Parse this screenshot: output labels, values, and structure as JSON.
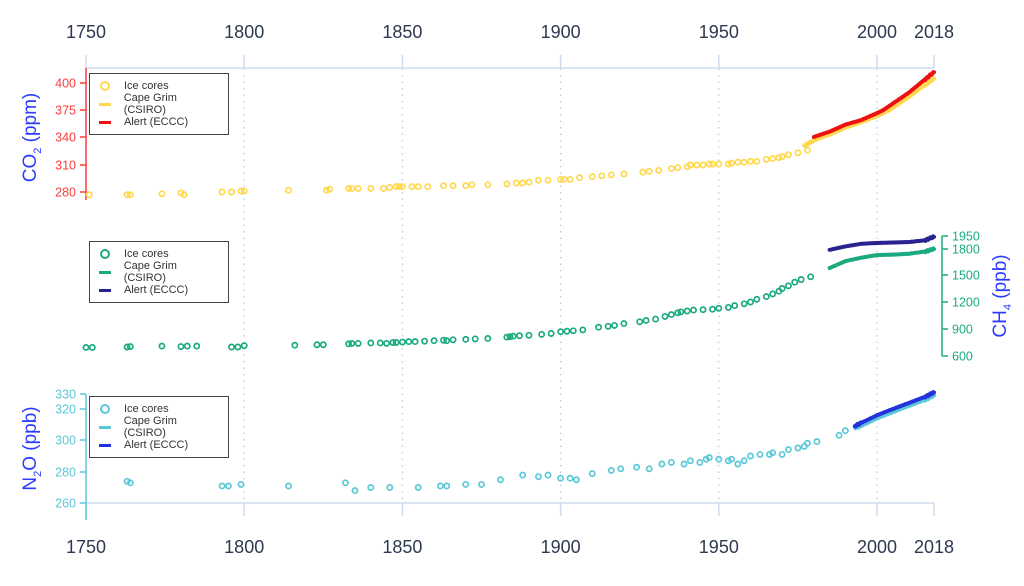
{
  "chart_data": {
    "type": "scatter",
    "title": "",
    "x_axis": {
      "label": "",
      "range": [
        1750,
        2018
      ],
      "ticks": [
        1750,
        1800,
        1850,
        1900,
        1950,
        2000,
        2018
      ],
      "tick_labels": [
        "1750",
        "1800",
        "1850",
        "1900",
        "1950",
        "2000",
        "2018"
      ],
      "position": "top and bottom",
      "grid": "dotted vertical at 1800, 1850, 1900, 1950, 2000"
    },
    "panels": [
      {
        "id": "co2",
        "ylabel": "CO2 (ppm)",
        "ylabel_main": "CO",
        "ylabel_sub": "2",
        "ylabel_unit": "(ppm)",
        "axis_side": "left",
        "axis_color": "#ff3b3b",
        "label_color": "#2b3bff",
        "ticks": [
          280,
          310,
          340,
          375,
          400
        ],
        "tick_labels": [
          "280",
          "310",
          "340",
          "375",
          "400"
        ],
        "legend": [
          {
            "label": "Ice cores",
            "symbol": "circle",
            "color": "#ffd84d"
          },
          {
            "label": "Cape Grim (CSIRO)",
            "symbol": "line",
            "color": "#ffd84d"
          },
          {
            "label": "Alert (ECCC)",
            "symbol": "line",
            "color": "#ee1111"
          }
        ],
        "series": [
          {
            "name": "Ice cores",
            "color": "#ffd84d",
            "type": "scatter",
            "x": [
              1751,
              1763,
              1764,
              1774,
              1780,
              1781,
              1793,
              1796,
              1799,
              1800,
              1814,
              1826,
              1827,
              1833,
              1834,
              1836,
              1840,
              1844,
              1846,
              1848,
              1849,
              1850,
              1853,
              1855,
              1858,
              1863,
              1866,
              1870,
              1872,
              1877,
              1883,
              1886,
              1888,
              1890,
              1893,
              1896,
              1900,
              1901,
              1903,
              1906,
              1910,
              1913,
              1916,
              1920,
              1926,
              1928,
              1931,
              1935,
              1937,
              1940,
              1941,
              1943,
              1945,
              1947,
              1948,
              1950,
              1953,
              1954,
              1956,
              1958,
              1960,
              1962,
              1965,
              1967,
              1969,
              1970,
              1972,
              1975,
              1978
            ],
            "y": [
              277,
              277,
              277,
              278,
              279,
              277,
              280,
              280,
              281,
              281,
              282,
              282,
              283,
              284,
              284,
              284,
              284,
              284,
              285,
              286,
              286,
              286,
              286,
              286,
              286,
              287,
              287,
              287,
              288,
              288,
              289,
              290,
              290,
              291,
              293,
              293,
              294,
              294,
              294,
              296,
              297,
              298,
              299,
              300,
              302,
              303,
              304,
              306,
              307,
              308,
              310,
              310,
              310,
              311,
              311,
              311,
              311,
              312,
              313,
              313,
              314,
              314,
              316,
              317,
              318,
              319,
              321,
              323,
              326
            ]
          },
          {
            "name": "Cape Grim (CSIRO)",
            "color": "#ffd84d",
            "type": "line",
            "x": [
              1977,
              1980,
              1985,
              1990,
              1995,
              2000,
              2005,
              2010,
              2015,
              2018
            ],
            "y": [
              331,
              336,
              343,
              352,
              359,
              367,
              377,
              387,
              398,
              404
            ]
          },
          {
            "name": "Alert (ECCC)",
            "color": "#ee1111",
            "type": "line",
            "x": [
              1980,
              1985,
              1990,
              1995,
              2000,
              2005,
              2010,
              2015,
              2018
            ],
            "y": [
              340,
              347,
              356,
              362,
              371,
              381,
              391,
              403,
              410
            ]
          }
        ]
      },
      {
        "id": "ch4",
        "ylabel": "CH4 (ppb)",
        "ylabel_main": "CH",
        "ylabel_sub": "4",
        "ylabel_unit": "(ppb)",
        "axis_side": "right",
        "axis_color": "#1aaa80",
        "label_color": "#2b3bff",
        "ticks": [
          600,
          900,
          1200,
          1500,
          1800,
          1950
        ],
        "tick_labels": [
          "600",
          "900",
          "1200",
          "1500",
          "1800",
          "1950"
        ],
        "legend": [
          {
            "label": "Ice cores",
            "symbol": "circle",
            "color": "#1aaa80"
          },
          {
            "label": "Cape Grim (CSIRO)",
            "symbol": "line",
            "color": "#1aaa80"
          },
          {
            "label": "Alert (ECCC)",
            "symbol": "line",
            "color": "#28238f"
          }
        ],
        "series": [
          {
            "name": "Ice cores",
            "color": "#1aaa80",
            "type": "scatter",
            "x": [
              1750,
              1752,
              1763,
              1764,
              1774,
              1780,
              1782,
              1785,
              1796,
              1798,
              1800,
              1816,
              1823,
              1825,
              1833,
              1834,
              1836,
              1840,
              1843,
              1845,
              1847,
              1848,
              1850,
              1852,
              1854,
              1857,
              1860,
              1863,
              1864,
              1866,
              1870,
              1873,
              1877,
              1883,
              1884,
              1885,
              1887,
              1890,
              1894,
              1897,
              1900,
              1902,
              1904,
              1907,
              1912,
              1915,
              1917,
              1920,
              1925,
              1927,
              1930,
              1933,
              1935,
              1937,
              1938,
              1940,
              1942,
              1945,
              1948,
              1950,
              1953,
              1955,
              1958,
              1960,
              1962,
              1965,
              1967,
              1969,
              1970,
              1972,
              1974,
              1976,
              1979
            ],
            "y": [
              695,
              695,
              700,
              705,
              710,
              705,
              710,
              710,
              700,
              700,
              715,
              720,
              725,
              725,
              735,
              740,
              740,
              745,
              745,
              740,
              750,
              750,
              755,
              760,
              760,
              765,
              770,
              775,
              770,
              780,
              785,
              790,
              795,
              810,
              815,
              820,
              825,
              830,
              840,
              850,
              870,
              875,
              880,
              890,
              920,
              930,
              940,
              960,
              980,
              995,
              1010,
              1040,
              1060,
              1080,
              1090,
              1100,
              1110,
              1115,
              1120,
              1130,
              1140,
              1160,
              1180,
              1200,
              1230,
              1260,
              1290,
              1320,
              1350,
              1380,
              1420,
              1450,
              1480
            ]
          },
          {
            "name": "Cape Grim (CSIRO)",
            "color": "#1aaa80",
            "type": "line",
            "x": [
              1985,
              1990,
              1995,
              2000,
              2005,
              2010,
              2015,
              2018
            ],
            "y": [
              1580,
              1660,
              1700,
              1730,
              1735,
              1745,
              1770,
              1800
            ]
          },
          {
            "name": "Alert (ECCC)",
            "color": "#28238f",
            "type": "line",
            "x": [
              1985,
              1990,
              1995,
              2000,
              2005,
              2010,
              2015,
              2018
            ],
            "y": [
              1790,
              1830,
              1860,
              1870,
              1875,
              1880,
              1900,
              1940
            ]
          }
        ]
      },
      {
        "id": "n2o",
        "ylabel": "N2O (ppb)",
        "ylabel_main": "N",
        "ylabel_sub": "2",
        "ylabel_tail": "O",
        "ylabel_unit": "(ppb)",
        "axis_side": "left",
        "axis_color": "#5bc8d8",
        "label_color": "#2b3bff",
        "ticks": [
          260,
          280,
          300,
          320,
          330
        ],
        "tick_labels": [
          "260",
          "280",
          "300",
          "320",
          "330"
        ],
        "legend": [
          {
            "label": "Ice cores",
            "symbol": "circle",
            "color": "#5bc8d8"
          },
          {
            "label": "Cape Grim (CSIRO)",
            "symbol": "line",
            "color": "#5bc8d8"
          },
          {
            "label": "Alert (ECCC)",
            "symbol": "line",
            "color": "#2233dd"
          }
        ],
        "series": [
          {
            "name": "Ice cores",
            "color": "#5bc8d8",
            "type": "scatter",
            "x": [
              1763,
              1764,
              1793,
              1795,
              1799,
              1814,
              1832,
              1835,
              1840,
              1846,
              1855,
              1862,
              1864,
              1870,
              1875,
              1881,
              1888,
              1893,
              1896,
              1900,
              1903,
              1905,
              1910,
              1916,
              1919,
              1924,
              1928,
              1932,
              1935,
              1939,
              1941,
              1944,
              1946,
              1947,
              1950,
              1953,
              1954,
              1956,
              1958,
              1960,
              1963,
              1966,
              1967,
              1970,
              1972,
              1975,
              1977,
              1978,
              1981,
              1988,
              1990
            ],
            "y": [
              274,
              273,
              271,
              271,
              272,
              271,
              273,
              268,
              270,
              270,
              270,
              271,
              271,
              272,
              272,
              275,
              278,
              277,
              278,
              276,
              276,
              275,
              279,
              281,
              282,
              283,
              282,
              285,
              286,
              285,
              287,
              286,
              288,
              289,
              288,
              287,
              288,
              285,
              287,
              290,
              291,
              291,
              292,
              291,
              294,
              295,
              296,
              298,
              299,
              303,
              306
            ]
          },
          {
            "name": "Cape Grim (CSIRO)",
            "color": "#5bc8d8",
            "type": "line",
            "x": [
              1993,
              1995,
              2000,
              2005,
              2010,
              2015,
              2018
            ],
            "y": [
              308,
              309,
              314,
              318,
              322,
              326,
              329
            ]
          },
          {
            "name": "Alert (ECCC)",
            "color": "#2233dd",
            "type": "line",
            "x": [
              1993,
              1995,
              2000,
              2005,
              2010,
              2015,
              2018
            ],
            "y": [
              309,
              311,
              316,
              320,
              324,
              328,
              331
            ]
          }
        ]
      }
    ],
    "legend_position": "upper-left of each panel"
  },
  "axis": {
    "top_ticks": [
      "1750",
      "1800",
      "1850",
      "1900",
      "1950",
      "2000",
      "2018"
    ],
    "bottom_ticks": [
      "1750",
      "1800",
      "1850",
      "1900",
      "1950",
      "2000",
      "2018"
    ]
  },
  "colors": {
    "axis_frame": "#cfdcec",
    "grid": "#b8cce0",
    "tick_text": "#2d3950"
  }
}
